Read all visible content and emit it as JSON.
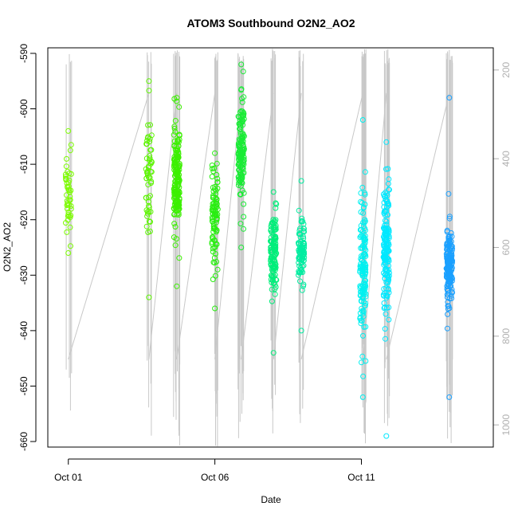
{
  "chart_data": {
    "type": "scatter",
    "title": "ATOM3 Southbound O2N2_AO2",
    "xlabel": "Date",
    "ylabel": "O2N2_AO2",
    "x_ticks": [
      {
        "label": "Oct 01",
        "day": 1
      },
      {
        "label": "Oct 06",
        "day": 6
      },
      {
        "label": "Oct 11",
        "day": 11
      }
    ],
    "xlim_days": [
      0.3,
      15.5
    ],
    "ylim": [
      -661,
      -589
    ],
    "y_ticks": [
      -590,
      -600,
      -610,
      -620,
      -630,
      -640,
      -650,
      -660
    ],
    "grid": false,
    "right_axis": {
      "description": "secondary axis (depth profile, reversed)",
      "range": [
        150,
        1050
      ],
      "ticks": [
        200,
        400,
        600,
        800,
        1000
      ],
      "color": "#b0b0b0"
    },
    "profile_line_color": "#c8c8c8",
    "series": [
      {
        "day": 1.0,
        "color": "#7cfc00",
        "center": -616,
        "spread": 6,
        "ymin": -626,
        "ymax": -604,
        "n": 45,
        "profile_ymin": 152,
        "profile_ymax": 1052
      },
      {
        "day": 3.75,
        "color": "#5cf500",
        "center": -612,
        "spread": 10,
        "ymin": -634,
        "ymax": -595,
        "n": 55,
        "profile_ymin": 152,
        "profile_ymax": 1052
      },
      {
        "day": 4.7,
        "color": "#3cf000",
        "center": -613,
        "spread": 8,
        "ymin": -632,
        "ymax": -598,
        "n": 170,
        "profile_ymin": 152,
        "profile_ymax": 1052
      },
      {
        "day": 6.0,
        "color": "#28ee10",
        "center": -620,
        "spread": 7,
        "ymin": -636,
        "ymax": -608,
        "n": 90,
        "profile_ymin": 152,
        "profile_ymax": 1052
      },
      {
        "day": 6.9,
        "color": "#19ec35",
        "center": -608,
        "spread": 8,
        "ymin": -625,
        "ymax": -592,
        "n": 150,
        "profile_ymin": 152,
        "profile_ymax": 1052
      },
      {
        "day": 8.0,
        "color": "#00ee7a",
        "center": -626,
        "spread": 6,
        "ymin": -644,
        "ymax": -615,
        "n": 120,
        "profile_ymin": 152,
        "profile_ymax": 1052
      },
      {
        "day": 8.95,
        "color": "#00eda0",
        "center": -626,
        "spread": 5,
        "ymin": -640,
        "ymax": -613,
        "n": 90,
        "profile_ymin": 152,
        "profile_ymax": 1052
      },
      {
        "day": 11.05,
        "color": "#00f0f0",
        "center": -628,
        "spread": 10,
        "ymin": -652,
        "ymax": -602,
        "n": 140,
        "profile_ymin": 152,
        "profile_ymax": 1052
      },
      {
        "day": 11.85,
        "color": "#00e8ff",
        "center": -625,
        "spread": 10,
        "ymin": -659,
        "ymax": -606,
        "n": 160,
        "profile_ymin": 152,
        "profile_ymax": 1052
      },
      {
        "day": 14.0,
        "color": "#1aa0ff",
        "center": -628,
        "spread": 6,
        "ymin": -652,
        "ymax": -598,
        "n": 170,
        "profile_ymin": 152,
        "profile_ymax": 1052
      }
    ]
  }
}
